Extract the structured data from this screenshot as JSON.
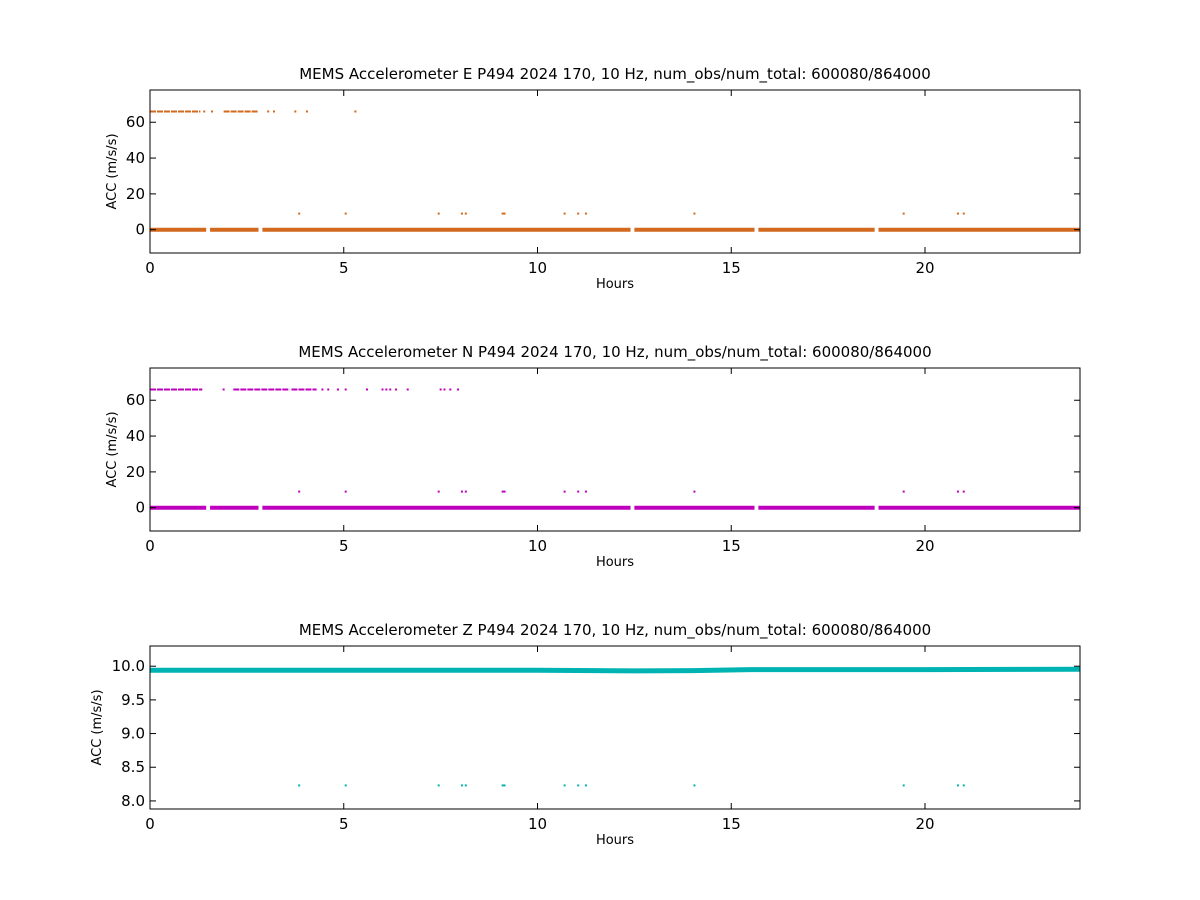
{
  "chart_data": [
    {
      "type": "scatter",
      "title": "MEMS Accelerometer E P494 2024 170, 10 Hz, num_obs/num_total: 600080/864000",
      "xlabel": "Hours",
      "ylabel": "ACC (m/s/s)",
      "xlim": [
        0,
        24
      ],
      "ylim": [
        -13,
        78
      ],
      "xticks": [
        0,
        5,
        10,
        15,
        20
      ],
      "yticks": [
        0,
        20,
        40,
        60
      ],
      "color": "#d2691e",
      "baseline": {
        "y": 0,
        "x_range": [
          0,
          24
        ]
      },
      "gaps": [
        [
          1.45,
          1.55
        ],
        [
          2.8,
          2.9
        ],
        [
          12.4,
          12.5
        ],
        [
          15.6,
          15.7
        ],
        [
          18.7,
          18.8
        ]
      ],
      "upper_clusters": [
        {
          "y": 66,
          "x_range": [
            0,
            1.3
          ]
        },
        {
          "y": 66,
          "x_range": [
            1.9,
            2.8
          ]
        }
      ],
      "upper_points": {
        "y": 66,
        "x": [
          1.4,
          1.6,
          3.05,
          3.2,
          3.75,
          4.05,
          5.3
        ]
      },
      "spike_points": {
        "y": 9,
        "x": [
          3.85,
          5.05,
          7.45,
          8.05,
          8.15,
          9.1,
          9.15,
          10.7,
          11.05,
          11.25,
          14.05,
          19.45,
          20.85,
          21.0
        ]
      }
    },
    {
      "type": "scatter",
      "title": "MEMS Accelerometer N P494 2024 170, 10 Hz, num_obs/num_total: 600080/864000",
      "xlabel": "Hours",
      "ylabel": "ACC (m/s/s)",
      "xlim": [
        0,
        24
      ],
      "ylim": [
        -13,
        78
      ],
      "xticks": [
        0,
        5,
        10,
        15,
        20
      ],
      "yticks": [
        0,
        20,
        40,
        60
      ],
      "color": "#bf00bf",
      "baseline": {
        "y": 0,
        "x_range": [
          0,
          24
        ]
      },
      "gaps": [
        [
          1.45,
          1.55
        ],
        [
          2.8,
          2.9
        ],
        [
          12.4,
          12.5
        ],
        [
          15.6,
          15.7
        ],
        [
          18.7,
          18.8
        ]
      ],
      "upper_clusters": [
        {
          "y": 66,
          "x_range": [
            0,
            1.35
          ]
        },
        {
          "y": 66,
          "x_range": [
            2.15,
            3.6
          ]
        },
        {
          "y": 66,
          "x_range": [
            3.65,
            4.3
          ]
        }
      ],
      "upper_points": {
        "y": 66,
        "x": [
          1.9,
          4.45,
          4.6,
          4.85,
          5.05,
          5.6,
          6.0,
          6.1,
          6.2,
          6.35,
          6.65,
          7.5,
          7.6,
          7.75,
          7.95
        ]
      },
      "spike_points": {
        "y": 9,
        "x": [
          3.85,
          5.05,
          7.45,
          8.05,
          8.15,
          9.1,
          9.15,
          10.7,
          11.05,
          11.25,
          14.05,
          19.45,
          20.85,
          21.0
        ]
      }
    },
    {
      "type": "scatter",
      "title": "MEMS Accelerometer Z P494 2024 170, 10 Hz, num_obs/num_total: 600080/864000",
      "xlabel": "Hours",
      "ylabel": "ACC (m/s/s)",
      "xlim": [
        0,
        24
      ],
      "ylim": [
        7.88,
        10.3
      ],
      "xticks": [
        0,
        5,
        10,
        15,
        20
      ],
      "yticks": [
        8.0,
        8.5,
        9.0,
        9.5,
        10.0
      ],
      "color": "#00b3b3",
      "baseline_profile": [
        [
          0,
          9.94
        ],
        [
          5,
          9.94
        ],
        [
          10,
          9.94
        ],
        [
          12.5,
          9.93
        ],
        [
          14,
          9.935
        ],
        [
          15.5,
          9.95
        ],
        [
          20,
          9.95
        ],
        [
          24,
          9.955
        ]
      ],
      "gaps": [
        [
          1.45,
          1.55
        ],
        [
          2.8,
          2.9
        ],
        [
          12.4,
          12.5
        ],
        [
          15.6,
          15.7
        ],
        [
          18.7,
          18.8
        ]
      ],
      "spike_points": {
        "y": 8.23,
        "x": [
          3.85,
          5.05,
          7.45,
          8.05,
          8.15,
          9.1,
          9.15,
          10.7,
          11.05,
          11.25,
          14.05,
          19.45,
          20.85,
          21.0
        ]
      }
    }
  ]
}
